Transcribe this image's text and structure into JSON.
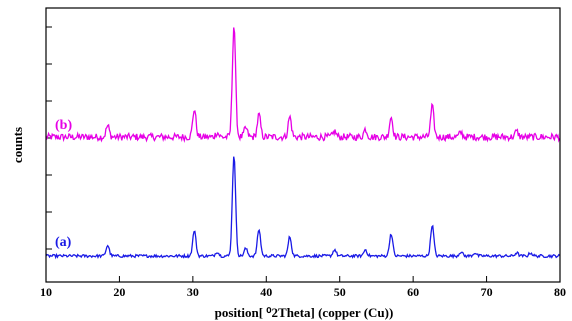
{
  "chart_data": {
    "type": "line",
    "title": "",
    "xlabel": "position[ ⁰2Theta] (copper (Cu))",
    "ylabel": "counts",
    "xlim": [
      10,
      80
    ],
    "x_ticks": [
      "10",
      "20",
      "30",
      "40",
      "50",
      "60",
      "70",
      "80"
    ],
    "y_tick_labels": false,
    "grid": false,
    "series": [
      {
        "name": "(b)",
        "color": "#e600e6",
        "baseline": 7,
        "peaks": [
          {
            "x": 18.4,
            "y": 10
          },
          {
            "x": 30.2,
            "y": 25
          },
          {
            "x": 33.3,
            "y": 4
          },
          {
            "x": 35.6,
            "y": 100
          },
          {
            "x": 37.2,
            "y": 8
          },
          {
            "x": 39.0,
            "y": 20
          },
          {
            "x": 43.2,
            "y": 18
          },
          {
            "x": 49.3,
            "y": 5
          },
          {
            "x": 53.5,
            "y": 7
          },
          {
            "x": 57.0,
            "y": 18
          },
          {
            "x": 62.6,
            "y": 27
          },
          {
            "x": 66.5,
            "y": 4
          },
          {
            "x": 74.1,
            "y": 5
          }
        ]
      },
      {
        "name": "(a)",
        "color": "#1a1ae6",
        "baseline": 3,
        "peaks": [
          {
            "x": 18.4,
            "y": 10
          },
          {
            "x": 30.2,
            "y": 24
          },
          {
            "x": 33.3,
            "y": 4
          },
          {
            "x": 35.6,
            "y": 95
          },
          {
            "x": 37.2,
            "y": 7
          },
          {
            "x": 39.0,
            "y": 25
          },
          {
            "x": 43.2,
            "y": 18
          },
          {
            "x": 49.3,
            "y": 6
          },
          {
            "x": 53.5,
            "y": 6
          },
          {
            "x": 57.0,
            "y": 21
          },
          {
            "x": 62.6,
            "y": 29
          },
          {
            "x": 66.5,
            "y": 4
          },
          {
            "x": 68.4,
            "y": 3
          },
          {
            "x": 74.1,
            "y": 3
          },
          {
            "x": 76.0,
            "y": 3
          }
        ]
      }
    ]
  }
}
